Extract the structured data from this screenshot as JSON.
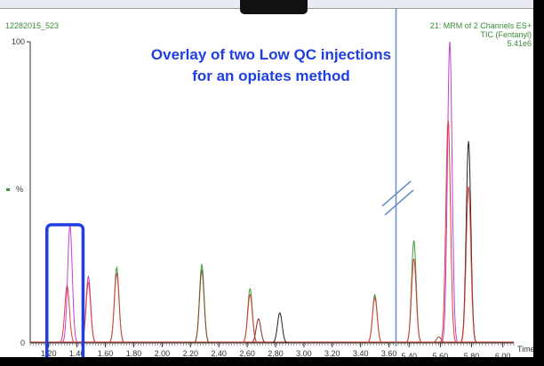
{
  "sample_id": "12282015_523",
  "header_right": {
    "line1": "21: MRM of 2 Channels ES+",
    "line2": "TIC (Fentanyl)",
    "line3": "5.41e6"
  },
  "annotation": {
    "line1": "Overlay of two Low QC injections",
    "line2": "for an opiates method"
  },
  "chart_data": {
    "type": "line",
    "title": "Overlay of two Low QC injections for an opiates method",
    "xlabel": "Time",
    "ylabel": "%",
    "ylim": [
      0,
      100
    ],
    "y_ticks": [
      "0",
      "100"
    ],
    "x_ticks_left": [
      "1.20",
      "1.40",
      "1.60",
      "1.80",
      "2.00",
      "2.20",
      "2.40",
      "2.60",
      "2.80",
      "3.00",
      "3.20",
      "3.40",
      "3.60"
    ],
    "x_ticks_right": [
      "5.40",
      "5.60",
      "5.80",
      "6.00"
    ],
    "xlim_left": [
      1.07,
      3.64
    ],
    "xlim_right": [
      5.33,
      6.07
    ],
    "axis_break": true,
    "highlight_box_range": [
      1.2,
      1.43
    ],
    "peaks": [
      {
        "rt": 1.33,
        "height": 19,
        "color": "#e0403a"
      },
      {
        "rt": 1.35,
        "height": 39,
        "color": "#c040d0"
      },
      {
        "rt": 1.48,
        "height": 22,
        "color": "#c040d0"
      },
      {
        "rt": 1.48,
        "height": 20,
        "color": "#e0403a"
      },
      {
        "rt": 1.68,
        "height": 25,
        "color": "#3a9a3a"
      },
      {
        "rt": 1.68,
        "height": 23,
        "color": "#e0403a"
      },
      {
        "rt": 2.28,
        "height": 26,
        "color": "#3a9a3a"
      },
      {
        "rt": 2.28,
        "height": 24,
        "color": "#8a4a2a"
      },
      {
        "rt": 2.62,
        "height": 18,
        "color": "#3a9a3a"
      },
      {
        "rt": 2.62,
        "height": 16,
        "color": "#e0403a"
      },
      {
        "rt": 2.68,
        "height": 8,
        "color": "#8a2a2a"
      },
      {
        "rt": 2.83,
        "height": 10,
        "color": "#222222"
      },
      {
        "rt": 3.5,
        "height": 16,
        "color": "#3a9a3a"
      },
      {
        "rt": 3.5,
        "height": 15,
        "color": "#e0403a"
      },
      {
        "rt": 5.43,
        "height": 34,
        "color": "#3a9a3a"
      },
      {
        "rt": 5.43,
        "height": 28,
        "color": "#e0403a"
      },
      {
        "rt": 5.59,
        "height": 2,
        "color": "#8a4a2a"
      },
      {
        "rt": 5.66,
        "height": 100,
        "color": "#c040d0"
      },
      {
        "rt": 5.65,
        "height": 74,
        "color": "#e0403a"
      },
      {
        "rt": 5.78,
        "height": 67,
        "color": "#222222"
      },
      {
        "rt": 5.78,
        "height": 52,
        "color": "#e0403a"
      }
    ]
  }
}
